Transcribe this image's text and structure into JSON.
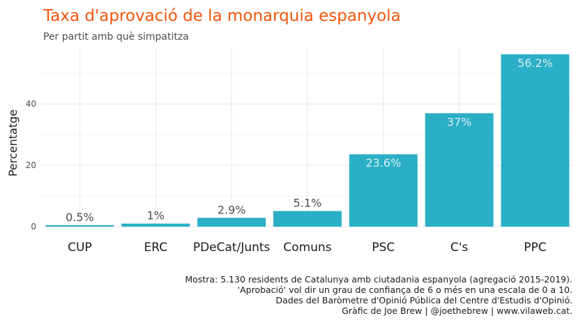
{
  "colors": {
    "title": "#f2550c",
    "bar": "#2bafc6",
    "label_dark": "#4d4d4d",
    "label_light": "#d7eef3",
    "grid": "#ebebeb",
    "axis_text": "#4d4d4d",
    "text": "#1a1a1a"
  },
  "chart_data": {
    "type": "bar",
    "title": "Taxa d'aprovació de la monarquia espanyola",
    "subtitle": "Per partit amb què simpatitza",
    "xlabel": "",
    "ylabel": "Percentatge",
    "ylim": [
      0,
      58
    ],
    "yticks": [
      0,
      20,
      40
    ],
    "grid": true,
    "categories": [
      "CUP",
      "ERC",
      "PDeCat/Junts",
      "Comuns",
      "PSC",
      "C's",
      "PPC"
    ],
    "values": [
      0.5,
      1,
      2.9,
      5.1,
      23.6,
      37,
      56.2
    ],
    "data_labels": [
      "0.5%",
      "1%",
      "2.9%",
      "5.1%",
      "23.6%",
      "37%",
      "56.2%"
    ]
  },
  "caption": [
    "Mostra: 5.130 residents de Catalunya amb ciutadania espanyola (agregació 2015-2019).",
    "'Aprobació' vol dir un grau de confiança de 6 o més en una escala de 0 a 10.",
    "Dades del Baròmetre d'Opinió Pública del Centre d'Estudis d'Opinió.",
    "Gràfic de Joe Brew | @joethebrew | www.vilaweb.cat."
  ]
}
